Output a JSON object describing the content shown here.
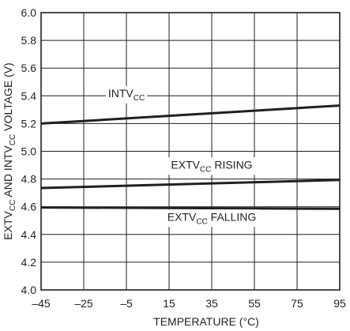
{
  "chart_data": {
    "type": "line",
    "xlabel": "TEMPERATURE (°C)",
    "ylabel_parts": [
      {
        "t": "EXTV",
        "sub": false
      },
      {
        "t": "CC",
        "sub": true
      },
      {
        "t": " AND INTV",
        "sub": false
      },
      {
        "t": "CC",
        "sub": true
      },
      {
        "t": " VOLTAGE (V)",
        "sub": false
      }
    ],
    "xlim": [
      -45,
      95
    ],
    "ylim": [
      4.0,
      6.0
    ],
    "x_ticks": [
      -45,
      -25,
      -5,
      15,
      35,
      55,
      75,
      95
    ],
    "x_tick_labels": [
      "–45",
      "–25",
      "–5",
      "15",
      "35",
      "55",
      "75",
      "95"
    ],
    "y_ticks": [
      4.0,
      4.2,
      4.4,
      4.6,
      4.8,
      5.0,
      5.2,
      5.4,
      5.6,
      5.8,
      6.0
    ],
    "y_tick_labels": [
      "4.0",
      "4.2",
      "4.4",
      "4.6",
      "4.8",
      "5.0",
      "5.2",
      "5.4",
      "5.6",
      "5.8",
      "6.0"
    ],
    "grid": true,
    "series": [
      {
        "label_parts": [
          {
            "t": "INTV",
            "sub": false
          },
          {
            "t": "CC",
            "sub": true
          }
        ],
        "x": [
          -45,
          95
        ],
        "y": [
          5.2,
          5.33
        ],
        "label_at": [
          -5,
          5.39
        ]
      },
      {
        "label_parts": [
          {
            "t": "EXTV",
            "sub": false
          },
          {
            "t": "CC",
            "sub": true
          },
          {
            "t": " RISING",
            "sub": false
          }
        ],
        "x": [
          -45,
          95
        ],
        "y": [
          4.735,
          4.793
        ],
        "label_at": [
          35,
          4.876
        ]
      },
      {
        "label_parts": [
          {
            "t": "EXTV",
            "sub": false
          },
          {
            "t": "CC",
            "sub": true
          },
          {
            "t": " FALLING",
            "sub": false
          }
        ],
        "x": [
          -45,
          95
        ],
        "y": [
          4.595,
          4.585
        ],
        "label_at": [
          35,
          4.5
        ]
      }
    ]
  }
}
